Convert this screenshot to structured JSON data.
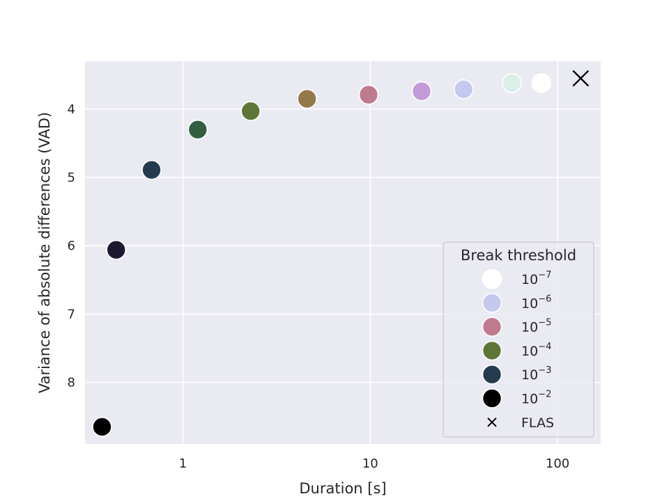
{
  "chart_data": {
    "type": "scatter",
    "xlabel": "Duration [s]",
    "ylabel": "Variance of absolute differences (VAD)",
    "x_scale": "log",
    "xlim": [
      0.3,
      170
    ],
    "ylim": [
      3.3,
      8.9
    ],
    "y_inverted": true,
    "grid": true,
    "x_ticks": [
      {
        "value": 1,
        "label": "1"
      },
      {
        "value": 10,
        "label": "10"
      },
      {
        "value": 100,
        "label": "100"
      }
    ],
    "y_ticks": [
      {
        "value": 4,
        "label": "4"
      },
      {
        "value": 5,
        "label": "5"
      },
      {
        "value": 6,
        "label": "6"
      },
      {
        "value": 7,
        "label": "7"
      },
      {
        "value": 8,
        "label": "8"
      }
    ],
    "points": [
      {
        "x": 0.37,
        "y": 8.65,
        "color": "#000000"
      },
      {
        "x": 0.44,
        "y": 6.06,
        "color": "#1c1931"
      },
      {
        "x": 0.68,
        "y": 4.89,
        "color": "#243b4e"
      },
      {
        "x": 1.2,
        "y": 4.3,
        "color": "#335f41"
      },
      {
        "x": 2.3,
        "y": 4.03,
        "color": "#5d7637"
      },
      {
        "x": 4.6,
        "y": 3.85,
        "color": "#93784a"
      },
      {
        "x": 9.8,
        "y": 3.79,
        "color": "#be7b8e"
      },
      {
        "x": 18.8,
        "y": 3.74,
        "color": "#c39ad8"
      },
      {
        "x": 31.5,
        "y": 3.71,
        "color": "#c5c9f0"
      },
      {
        "x": 57,
        "y": 3.62,
        "color": "#d9efea"
      },
      {
        "x": 82,
        "y": 3.62,
        "color": "#ffffff"
      }
    ],
    "flas_point": {
      "x": 133,
      "y": 3.55,
      "marker": "x",
      "color": "#000000"
    },
    "legend": {
      "title": "Break threshold",
      "placement": "lower-right",
      "entries": [
        {
          "base": "10",
          "exp": "−7",
          "color": "#ffffff",
          "marker": "circle"
        },
        {
          "base": "10",
          "exp": "−6",
          "color": "#c5c9f0",
          "marker": "circle"
        },
        {
          "base": "10",
          "exp": "−5",
          "color": "#be7b8e",
          "marker": "circle"
        },
        {
          "base": "10",
          "exp": "−4",
          "color": "#5d7637",
          "marker": "circle"
        },
        {
          "base": "10",
          "exp": "−3",
          "color": "#243b4e",
          "marker": "circle"
        },
        {
          "base": "10",
          "exp": "−2",
          "color": "#000000",
          "marker": "circle"
        },
        {
          "base": "FLAS",
          "exp": "",
          "color": "#000000",
          "marker": "x"
        }
      ]
    },
    "colors": {
      "plot_background": "#eaeaf2",
      "grid": "#ffffff",
      "marker_edge": "#ffffff"
    }
  }
}
